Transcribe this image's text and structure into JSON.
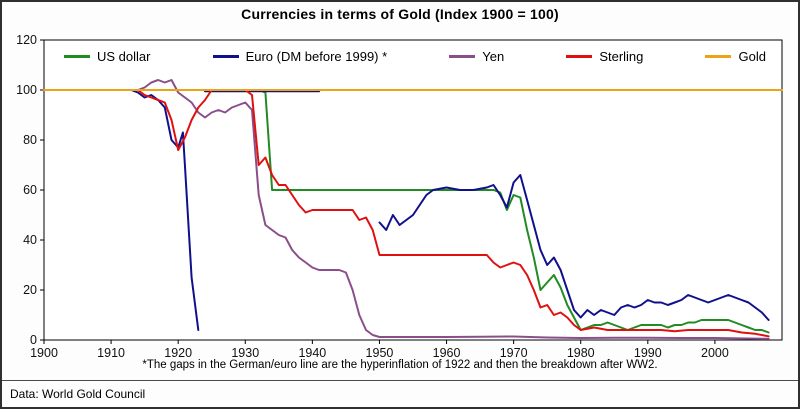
{
  "title": "Currencies in terms of Gold (Index 1900 = 100)",
  "footnote": "*The gaps in the German/euro line are the hyperinflation of 1922 and then the breakdown after WW2.",
  "source": "Data: World Gold Council",
  "chart_data": {
    "type": "line",
    "title": "Currencies in terms of Gold (Index 1900 = 100)",
    "xlabel": "",
    "ylabel": "",
    "grid": false,
    "legend_position": "top-inside",
    "x_axis": {
      "min": 1900,
      "max": 2010,
      "ticks": [
        1900,
        1910,
        1920,
        1930,
        1940,
        1950,
        1960,
        1970,
        1980,
        1990,
        2000
      ]
    },
    "y_axis": {
      "min": 0,
      "max": 120,
      "ticks": [
        0,
        20,
        40,
        60,
        80,
        100,
        120
      ]
    },
    "series": [
      {
        "name": "US dollar",
        "color": "#228b22",
        "segments": [
          [
            [
              1900,
              100
            ],
            [
              1932,
              100
            ],
            [
              1933,
              99
            ],
            [
              1934,
              60
            ],
            [
              1950,
              60
            ],
            [
              1960,
              60
            ],
            [
              1967,
              60
            ],
            [
              1968,
              59
            ],
            [
              1969,
              52
            ],
            [
              1970,
              58
            ],
            [
              1971,
              57
            ],
            [
              1972,
              44
            ],
            [
              1973,
              33
            ],
            [
              1974,
              20
            ],
            [
              1975,
              23
            ],
            [
              1976,
              26
            ],
            [
              1977,
              21
            ],
            [
              1978,
              14
            ],
            [
              1979,
              9
            ],
            [
              1980,
              4
            ],
            [
              1981,
              5
            ],
            [
              1982,
              6
            ],
            [
              1983,
              6
            ],
            [
              1984,
              7
            ],
            [
              1985,
              6
            ],
            [
              1986,
              5
            ],
            [
              1987,
              4
            ],
            [
              1988,
              5
            ],
            [
              1989,
              6
            ],
            [
              1990,
              6
            ],
            [
              1991,
              6
            ],
            [
              1992,
              6
            ],
            [
              1993,
              5
            ],
            [
              1994,
              6
            ],
            [
              1995,
              6
            ],
            [
              1996,
              7
            ],
            [
              1997,
              7
            ],
            [
              1998,
              8
            ],
            [
              1999,
              8
            ],
            [
              2000,
              8
            ],
            [
              2001,
              8
            ],
            [
              2002,
              8
            ],
            [
              2003,
              7
            ],
            [
              2004,
              6
            ],
            [
              2005,
              5
            ],
            [
              2006,
              4
            ],
            [
              2007,
              4
            ],
            [
              2008,
              3
            ]
          ]
        ]
      },
      {
        "name": "Euro (DM before 1999) *",
        "color": "#10108c",
        "segments": [
          [
            [
              1900,
              100
            ],
            [
              1913,
              100
            ],
            [
              1914,
              99
            ],
            [
              1915,
              97
            ],
            [
              1916,
              98
            ],
            [
              1917,
              96
            ],
            [
              1918,
              93
            ],
            [
              1919,
              80
            ],
            [
              1920,
              77
            ],
            [
              1920.7,
              83
            ],
            [
              1921,
              70
            ],
            [
              1922,
              25
            ],
            [
              1923,
              4
            ]
          ],
          [
            [
              1924,
              99.5
            ],
            [
              1930,
              99.5
            ],
            [
              1935,
              99.5
            ],
            [
              1941,
              99.5
            ]
          ],
          [
            [
              1950,
              47
            ],
            [
              1951,
              44
            ],
            [
              1952,
              50
            ],
            [
              1953,
              46
            ],
            [
              1954,
              48
            ],
            [
              1955,
              50
            ],
            [
              1956,
              54
            ],
            [
              1957,
              58
            ],
            [
              1958,
              60
            ],
            [
              1960,
              61
            ],
            [
              1962,
              60
            ],
            [
              1964,
              60
            ],
            [
              1966,
              61
            ],
            [
              1967,
              62
            ],
            [
              1968,
              58
            ],
            [
              1969,
              53
            ],
            [
              1970,
              63
            ],
            [
              1971,
              66
            ],
            [
              1972,
              56
            ],
            [
              1973,
              46
            ],
            [
              1974,
              36
            ],
            [
              1975,
              30
            ],
            [
              1976,
              33
            ],
            [
              1977,
              28
            ],
            [
              1978,
              20
            ],
            [
              1979,
              12
            ],
            [
              1980,
              9
            ],
            [
              1981,
              12
            ],
            [
              1982,
              10
            ],
            [
              1983,
              12
            ],
            [
              1984,
              11
            ],
            [
              1985,
              10
            ],
            [
              1986,
              13
            ],
            [
              1987,
              14
            ],
            [
              1988,
              13
            ],
            [
              1989,
              14
            ],
            [
              1990,
              16
            ],
            [
              1991,
              15
            ],
            [
              1992,
              15
            ],
            [
              1993,
              14
            ],
            [
              1994,
              15
            ],
            [
              1995,
              16
            ],
            [
              1996,
              18
            ],
            [
              1997,
              17
            ],
            [
              1998,
              16
            ],
            [
              1999,
              15
            ],
            [
              2000,
              16
            ],
            [
              2001,
              17
            ],
            [
              2002,
              18
            ],
            [
              2003,
              17
            ],
            [
              2004,
              16
            ],
            [
              2005,
              15
            ],
            [
              2006,
              13
            ],
            [
              2007,
              11
            ],
            [
              2008,
              8
            ]
          ]
        ]
      },
      {
        "name": "Yen",
        "color": "#8a4f8a",
        "segments": [
          [
            [
              1900,
              100
            ],
            [
              1914,
              100
            ],
            [
              1915,
              101
            ],
            [
              1916,
              103
            ],
            [
              1917,
              104
            ],
            [
              1918,
              103
            ],
            [
              1919,
              104
            ],
            [
              1920,
              99
            ],
            [
              1921,
              97
            ],
            [
              1922,
              95
            ],
            [
              1923,
              91
            ],
            [
              1924,
              89
            ],
            [
              1925,
              91
            ],
            [
              1926,
              92
            ],
            [
              1927,
              91
            ],
            [
              1928,
              93
            ],
            [
              1929,
              94
            ],
            [
              1930,
              95
            ],
            [
              1931,
              92
            ],
            [
              1932,
              58
            ],
            [
              1933,
              46
            ],
            [
              1934,
              44
            ],
            [
              1935,
              42
            ],
            [
              1936,
              41
            ],
            [
              1937,
              36
            ],
            [
              1938,
              33
            ],
            [
              1939,
              31
            ],
            [
              1940,
              29
            ],
            [
              1941,
              28
            ],
            [
              1944,
              28
            ],
            [
              1945,
              27
            ],
            [
              1946,
              20
            ],
            [
              1947,
              10
            ],
            [
              1948,
              4
            ],
            [
              1949,
              2
            ],
            [
              1950,
              1.2
            ],
            [
              1955,
              1.2
            ],
            [
              1960,
              1.2
            ],
            [
              1965,
              1.3
            ],
            [
              1970,
              1.4
            ],
            [
              1975,
              1
            ],
            [
              1980,
              0.8
            ],
            [
              1985,
              0.9
            ],
            [
              1990,
              0.9
            ],
            [
              1995,
              0.8
            ],
            [
              2000,
              0.8
            ],
            [
              2005,
              0.6
            ],
            [
              2008,
              0.5
            ]
          ]
        ]
      },
      {
        "name": "Sterling",
        "color": "#e01010",
        "segments": [
          [
            [
              1900,
              100
            ],
            [
              1914,
              100
            ],
            [
              1915,
              98
            ],
            [
              1916,
              97
            ],
            [
              1917,
              96
            ],
            [
              1918,
              95
            ],
            [
              1919,
              88
            ],
            [
              1920,
              76
            ],
            [
              1921,
              81
            ],
            [
              1922,
              88
            ],
            [
              1923,
              93
            ],
            [
              1924,
              96
            ],
            [
              1925,
              100
            ],
            [
              1930,
              100
            ],
            [
              1931,
              98
            ],
            [
              1932,
              70
            ],
            [
              1933,
              73
            ],
            [
              1934,
              66
            ],
            [
              1935,
              62
            ],
            [
              1936,
              62
            ],
            [
              1937,
              58
            ],
            [
              1938,
              54
            ],
            [
              1939,
              51
            ],
            [
              1940,
              52
            ],
            [
              1942,
              52
            ],
            [
              1944,
              52
            ],
            [
              1946,
              52
            ],
            [
              1947,
              48
            ],
            [
              1948,
              49
            ],
            [
              1949,
              44
            ],
            [
              1950,
              34
            ],
            [
              1955,
              34
            ],
            [
              1960,
              34
            ],
            [
              1965,
              34
            ],
            [
              1966,
              34
            ],
            [
              1967,
              31
            ],
            [
              1968,
              29
            ],
            [
              1969,
              30
            ],
            [
              1970,
              31
            ],
            [
              1971,
              30
            ],
            [
              1972,
              26
            ],
            [
              1973,
              20
            ],
            [
              1974,
              13
            ],
            [
              1975,
              14
            ],
            [
              1976,
              10
            ],
            [
              1977,
              11
            ],
            [
              1978,
              9
            ],
            [
              1979,
              6
            ],
            [
              1980,
              4
            ],
            [
              1982,
              5
            ],
            [
              1984,
              4
            ],
            [
              1986,
              4
            ],
            [
              1988,
              4
            ],
            [
              1990,
              4
            ],
            [
              1992,
              4
            ],
            [
              1994,
              3.5
            ],
            [
              1996,
              4
            ],
            [
              1998,
              4
            ],
            [
              2000,
              4
            ],
            [
              2002,
              4
            ],
            [
              2004,
              3
            ],
            [
              2006,
              2.5
            ],
            [
              2008,
              1.5
            ]
          ]
        ]
      },
      {
        "name": "Gold",
        "color": "#eca416",
        "segments": [
          [
            [
              1900,
              100
            ],
            [
              2010,
              100
            ]
          ]
        ]
      }
    ]
  }
}
